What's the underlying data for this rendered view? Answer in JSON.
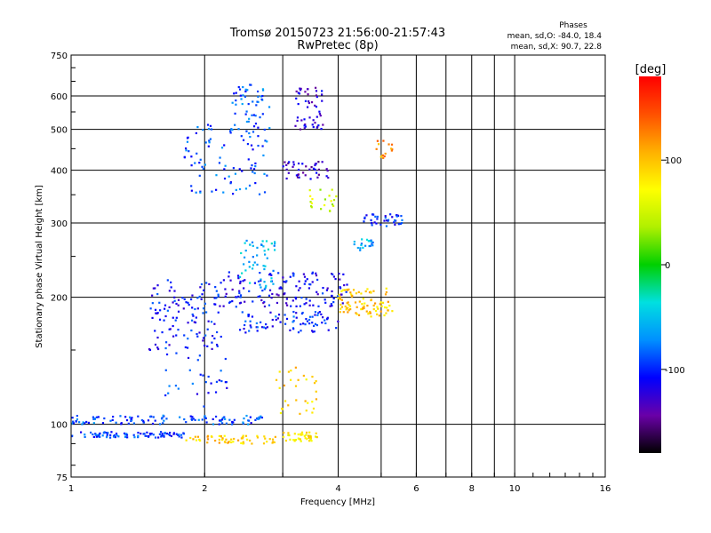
{
  "chart_data": {
    "type": "scatter",
    "title": "Tromsø 20150723 21:56:00-21:57:43",
    "subtitle": "RwPretec (8p)",
    "xlabel": "Frequency [MHz]",
    "ylabel": "Stationary phase Virtual Height [km]",
    "x_scale": "log",
    "y_scale": "log",
    "xlim": [
      1,
      16
    ],
    "ylim": [
      75,
      750
    ],
    "x_ticks": [
      1,
      2,
      4,
      6,
      8,
      10,
      16
    ],
    "x_minor": [
      3,
      5,
      7,
      9
    ],
    "y_ticks": [
      75,
      100,
      200,
      300,
      400,
      500,
      600,
      750
    ],
    "grid": true,
    "legend": {
      "title": "Phases",
      "lines": [
        "mean, sd,O: -84.0, 18.4",
        "mean, sd,X:  90.7, 22.8"
      ],
      "position": "top-right"
    },
    "colorbar": {
      "label": "[deg]",
      "range": [
        -180,
        180
      ],
      "ticks": [
        100,
        0,
        -100
      ],
      "colors": [
        "#000000",
        "#6a00a8",
        "#0000ff",
        "#0090ff",
        "#00e0e0",
        "#00d000",
        "#b0f000",
        "#ffff00",
        "#ffb000",
        "#ff5000",
        "#ff0000"
      ]
    },
    "clusters": [
      {
        "name": "o1",
        "x": [
          1.0,
          1.8
        ],
        "y": [
          93,
          96
        ],
        "phase": -95,
        "n": 90
      },
      {
        "name": "o1b",
        "x": [
          1.0,
          2.7
        ],
        "y": [
          100,
          105
        ],
        "phase": -90,
        "n": 110
      },
      {
        "name": "o2",
        "x": [
          1.5,
          2.2
        ],
        "y": [
          150,
          220
        ],
        "phase": -105,
        "n": 120
      },
      {
        "name": "o3",
        "x": [
          1.6,
          2.3
        ],
        "y": [
          110,
          150
        ],
        "phase": -95,
        "n": 30
      },
      {
        "name": "o4",
        "x": [
          1.8,
          2.8
        ],
        "y": [
          350,
          520
        ],
        "phase": -90,
        "n": 90
      },
      {
        "name": "o5",
        "x": [
          2.3,
          2.8
        ],
        "y": [
          480,
          640
        ],
        "phase": -85,
        "n": 50
      },
      {
        "name": "o6",
        "x": [
          2.2,
          4.2
        ],
        "y": [
          190,
          230
        ],
        "phase": -110,
        "n": 140
      },
      {
        "name": "o7",
        "x": [
          2.4,
          4.0
        ],
        "y": [
          165,
          185
        ],
        "phase": -100,
        "n": 80
      },
      {
        "name": "o8",
        "x": [
          3.2,
          3.7
        ],
        "y": [
          500,
          630
        ],
        "phase": -125,
        "n": 50
      },
      {
        "name": "o9",
        "x": [
          3.0,
          3.8
        ],
        "y": [
          380,
          420
        ],
        "phase": -130,
        "n": 40
      },
      {
        "name": "o10",
        "x": [
          4.5,
          5.6
        ],
        "y": [
          295,
          315
        ],
        "phase": -100,
        "n": 40
      },
      {
        "name": "o11",
        "x": [
          4.3,
          4.8
        ],
        "y": [
          255,
          275
        ],
        "phase": -60,
        "n": 20
      },
      {
        "name": "o12",
        "x": [
          2.4,
          2.9
        ],
        "y": [
          210,
          275
        ],
        "phase": -55,
        "n": 50
      },
      {
        "name": "x1",
        "x": [
          1.8,
          2.9
        ],
        "y": [
          90,
          94
        ],
        "phase": 95,
        "n": 60
      },
      {
        "name": "x2",
        "x": [
          3.0,
          3.6
        ],
        "y": [
          91,
          96
        ],
        "phase": 80,
        "n": 40
      },
      {
        "name": "x3",
        "x": [
          4.0,
          5.3
        ],
        "y": [
          180,
          210
        ],
        "phase": 95,
        "n": 90
      },
      {
        "name": "x4",
        "x": [
          2.9,
          3.6
        ],
        "y": [
          105,
          140
        ],
        "phase": 90,
        "n": 30
      },
      {
        "name": "x5",
        "x": [
          3.4,
          4.0
        ],
        "y": [
          320,
          360
        ],
        "phase": 50,
        "n": 20
      },
      {
        "name": "x6",
        "x": [
          4.8,
          5.3
        ],
        "y": [
          420,
          470
        ],
        "phase": 120,
        "n": 15
      }
    ]
  }
}
